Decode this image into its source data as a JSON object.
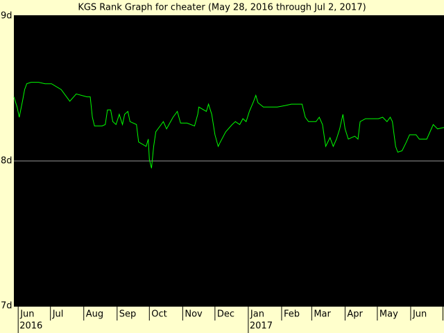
{
  "chart_data": {
    "type": "line",
    "title": "KGS Rank Graph for cheater (May 28, 2016 through Jul 2, 2017)",
    "background": "#ffffcc",
    "plot_background": "#000000",
    "grid_color": "#999999",
    "grid": true,
    "xlim": [
      "2016-05-28",
      "2017-07-02"
    ],
    "ylim": [
      7,
      9
    ],
    "yticks": [
      {
        "value": 9,
        "label": "9d"
      },
      {
        "value": 8,
        "label": "8d"
      },
      {
        "value": 7,
        "label": "7d"
      }
    ],
    "xticks": [
      {
        "value": "2016-06-01",
        "label": "Jun"
      },
      {
        "value": "2016-07-01",
        "label": "Jul"
      },
      {
        "value": "2016-08-01",
        "label": "Aug"
      },
      {
        "value": "2016-09-01",
        "label": "Sep"
      },
      {
        "value": "2016-10-01",
        "label": "Oct"
      },
      {
        "value": "2016-11-01",
        "label": "Nov"
      },
      {
        "value": "2016-12-01",
        "label": "Dec"
      },
      {
        "value": "2017-01-01",
        "label": "Jan"
      },
      {
        "value": "2017-02-01",
        "label": "Feb"
      },
      {
        "value": "2017-03-01",
        "label": "Mar"
      },
      {
        "value": "2017-04-01",
        "label": "Apr"
      },
      {
        "value": "2017-05-01",
        "label": "May"
      },
      {
        "value": "2017-06-01",
        "label": "Jun"
      },
      {
        "value": "2017-07-01",
        "label": "Jul"
      }
    ],
    "year_ticks": [
      {
        "value": "2016-06-01",
        "label": "2016"
      },
      {
        "value": "2017-01-01",
        "label": "2017"
      }
    ],
    "x": [
      "2016-05-28",
      "2016-05-31",
      "2016-06-02",
      "2016-06-05",
      "2016-06-07",
      "2016-06-09",
      "2016-06-13",
      "2016-06-20",
      "2016-06-26",
      "2016-07-02",
      "2016-07-11",
      "2016-07-19",
      "2016-07-25",
      "2016-08-04",
      "2016-08-07",
      "2016-08-09",
      "2016-08-11",
      "2016-08-18",
      "2016-08-21",
      "2016-08-23",
      "2016-08-26",
      "2016-08-28",
      "2016-08-31",
      "2016-09-03",
      "2016-09-06",
      "2016-09-08",
      "2016-09-11",
      "2016-09-13",
      "2016-09-19",
      "2016-09-21",
      "2016-09-28",
      "2016-09-30",
      "2016-10-01",
      "2016-10-03",
      "2016-10-05",
      "2016-10-07",
      "2016-10-12",
      "2016-10-14",
      "2016-10-17",
      "2016-10-23",
      "2016-10-27",
      "2016-10-30",
      "2016-11-05",
      "2016-11-12",
      "2016-11-15",
      "2016-11-16",
      "2016-11-23",
      "2016-11-25",
      "2016-11-28",
      "2016-12-01",
      "2016-12-04",
      "2016-12-06",
      "2016-12-11",
      "2016-12-17",
      "2016-12-20",
      "2016-12-24",
      "2016-12-27",
      "2016-12-30",
      "2017-01-02",
      "2017-01-06",
      "2017-01-08",
      "2017-01-10",
      "2017-01-15",
      "2017-01-22",
      "2017-01-28",
      "2017-02-04",
      "2017-02-10",
      "2017-02-17",
      "2017-02-20",
      "2017-02-23",
      "2017-02-26",
      "2017-03-05",
      "2017-03-08",
      "2017-03-11",
      "2017-03-14",
      "2017-03-18",
      "2017-03-21",
      "2017-03-24",
      "2017-03-27",
      "2017-03-30",
      "2017-04-01",
      "2017-04-04",
      "2017-04-10",
      "2017-04-13",
      "2017-04-15",
      "2017-04-20",
      "2017-04-27",
      "2017-05-02",
      "2017-05-06",
      "2017-05-10",
      "2017-05-13",
      "2017-05-15",
      "2017-05-18",
      "2017-05-20",
      "2017-05-24",
      "2017-05-28",
      "2017-05-31",
      "2017-06-06",
      "2017-06-09",
      "2017-06-16",
      "2017-06-19",
      "2017-06-22",
      "2017-06-26",
      "2017-07-02"
    ],
    "series": [
      {
        "name": "cheater",
        "color": "#00ff00",
        "values": [
          8.44,
          8.37,
          8.3,
          8.41,
          8.49,
          8.53,
          8.54,
          8.54,
          8.53,
          8.53,
          8.49,
          8.41,
          8.46,
          8.44,
          8.44,
          8.3,
          8.24,
          8.24,
          8.25,
          8.35,
          8.35,
          8.27,
          8.25,
          8.32,
          8.25,
          8.32,
          8.34,
          8.27,
          8.25,
          8.13,
          8.1,
          8.15,
          8.01,
          7.95,
          8.1,
          8.2,
          8.25,
          8.27,
          8.22,
          8.3,
          8.34,
          8.26,
          8.26,
          8.24,
          8.32,
          8.37,
          8.34,
          8.39,
          8.32,
          8.18,
          8.1,
          8.13,
          8.2,
          8.25,
          8.27,
          8.25,
          8.29,
          8.27,
          8.34,
          8.41,
          8.45,
          8.4,
          8.37,
          8.37,
          8.37,
          8.38,
          8.39,
          8.39,
          8.39,
          8.3,
          8.27,
          8.27,
          8.3,
          8.25,
          8.1,
          8.16,
          8.1,
          8.15,
          8.22,
          8.32,
          8.22,
          8.15,
          8.17,
          8.15,
          8.27,
          8.29,
          8.29,
          8.29,
          8.3,
          8.27,
          8.3,
          8.27,
          8.1,
          8.06,
          8.07,
          8.13,
          8.18,
          8.18,
          8.15,
          8.15,
          8.2,
          8.25,
          8.22,
          8.23
        ]
      }
    ]
  }
}
